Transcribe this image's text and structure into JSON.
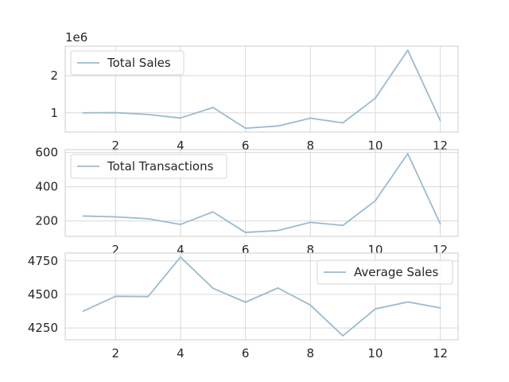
{
  "chart_data": [
    {
      "type": "line",
      "x": [
        1,
        2,
        3,
        4,
        5,
        6,
        7,
        8,
        9,
        10,
        11,
        12
      ],
      "series": [
        {
          "name": "Total Sales",
          "values": [
            1000000,
            1005000,
            955000,
            860000,
            1145000,
            585000,
            645000,
            855000,
            730000,
            1395000,
            2690000,
            795000
          ]
        }
      ],
      "xticks": [
        "2",
        "4",
        "6",
        "8",
        "10",
        "12"
      ],
      "xtick_values": [
        2,
        4,
        6,
        8,
        10,
        12
      ],
      "yticks": [
        "1",
        "2"
      ],
      "ytick_values": [
        1000000,
        2000000
      ],
      "offset_text": "1e6",
      "xlim": [
        0.45,
        12.55
      ],
      "ylim": [
        480000,
        2800000
      ],
      "grid": true,
      "legend": "top-left",
      "color": "#9bbbcf"
    },
    {
      "type": "line",
      "x": [
        1,
        2,
        3,
        4,
        5,
        6,
        7,
        8,
        9,
        10,
        11,
        12
      ],
      "series": [
        {
          "name": "Total Transactions",
          "values": [
            229,
            224,
            213,
            180,
            253,
            133,
            144,
            192,
            174,
            318,
            594,
            183
          ]
        }
      ],
      "xticks": [
        "2",
        "4",
        "6",
        "8",
        "10",
        "12"
      ],
      "xtick_values": [
        2,
        4,
        6,
        8,
        10,
        12
      ],
      "yticks": [
        "200",
        "400",
        "600"
      ],
      "ytick_values": [
        200,
        400,
        600
      ],
      "xlim": [
        0.45,
        12.55
      ],
      "ylim": [
        110,
        617
      ],
      "grid": true,
      "legend": "top-left",
      "color": "#9bbbcf"
    },
    {
      "type": "line",
      "x": [
        1,
        2,
        3,
        4,
        5,
        6,
        7,
        8,
        9,
        10,
        11,
        12
      ],
      "series": [
        {
          "name": "Average Sales",
          "values": [
            4375,
            4486,
            4484,
            4778,
            4546,
            4442,
            4548,
            4421,
            4192,
            4392,
            4444,
            4400
          ]
        }
      ],
      "xticks": [
        "2",
        "4",
        "6",
        "8",
        "10",
        "12"
      ],
      "xtick_values": [
        2,
        4,
        6,
        8,
        10,
        12
      ],
      "yticks": [
        "4250",
        "4500",
        "4750"
      ],
      "ytick_values": [
        4250,
        4500,
        4750
      ],
      "xlim": [
        0.45,
        12.55
      ],
      "ylim": [
        4162,
        4808
      ],
      "grid": true,
      "legend": "top-right",
      "color": "#9bbbcf"
    }
  ]
}
